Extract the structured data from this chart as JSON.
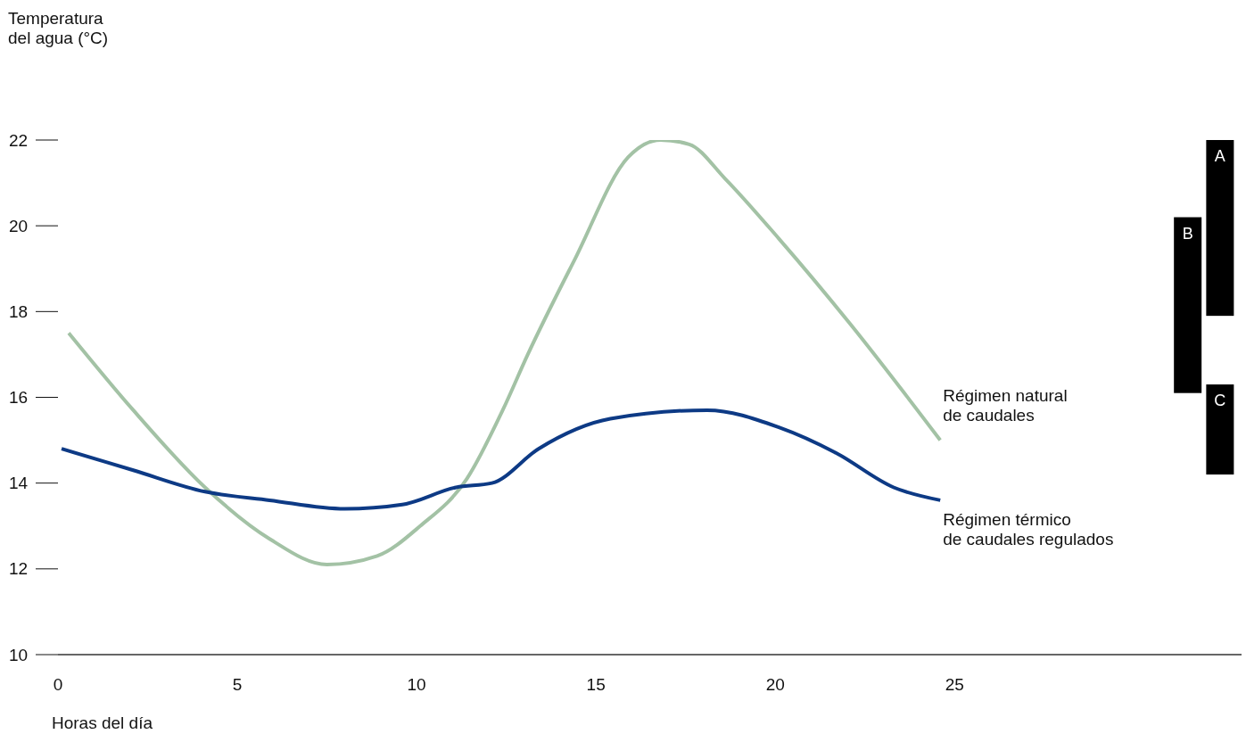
{
  "chart_data": {
    "type": "line",
    "ylabel": "Temperatura del agua (°C)",
    "xlabel": "Horas del día",
    "xlim": [
      0,
      33
    ],
    "xticks": [
      0,
      5,
      10,
      15,
      20,
      25
    ],
    "ylim": [
      10,
      22
    ],
    "yticks": [
      10,
      12,
      14,
      16,
      18,
      20,
      22
    ],
    "series": [
      {
        "name": "Régimen natural de caudales",
        "color": "#a3c2a5",
        "x": [
          0.3,
          2.1,
          4.1,
          5.9,
          7.5,
          8.9,
          10.1,
          11.4,
          12.4,
          13.1,
          14.4,
          15.9,
          16.8,
          17.6,
          18.6,
          20.1,
          22.1,
          24.6
        ],
        "values": [
          17.5,
          15.7,
          13.9,
          12.7,
          12.1,
          12.3,
          13.0,
          14.1,
          15.7,
          17.0,
          19.2,
          21.6,
          22.0,
          21.9,
          21.1,
          19.7,
          17.7,
          15.0
        ]
      },
      {
        "name": "Régimen térmico de caudales regulados",
        "color": "#0d3a85",
        "x": [
          0.1,
          2.1,
          4.1,
          5.9,
          8.0,
          9.6,
          11.1,
          12.1,
          13.4,
          15.4,
          18.1,
          20.1,
          21.7,
          23.3,
          24.6
        ],
        "values": [
          14.8,
          14.3,
          13.8,
          13.6,
          13.4,
          13.5,
          13.9,
          14.0,
          14.8,
          15.5,
          15.7,
          15.3,
          14.7,
          13.9,
          13.6
        ]
      },
      {
        "type": "bar",
        "color": "#000000",
        "x": [
          31.5
        ],
        "base": [
          16.1
        ],
        "values": [
          4.1
        ],
        "value_labels": [
          "B"
        ]
      },
      {
        "type": "bar",
        "color": "#000000",
        "x": [
          32.4
        ],
        "base": [
          17.9
        ],
        "values": [
          4.1
        ],
        "value_labels": [
          "A"
        ]
      },
      {
        "type": "bar",
        "color": "#000000",
        "x": [
          32.4
        ],
        "base": [
          14.2
        ],
        "values": [
          2.1
        ],
        "value_labels": [
          "C"
        ]
      }
    ]
  }
}
